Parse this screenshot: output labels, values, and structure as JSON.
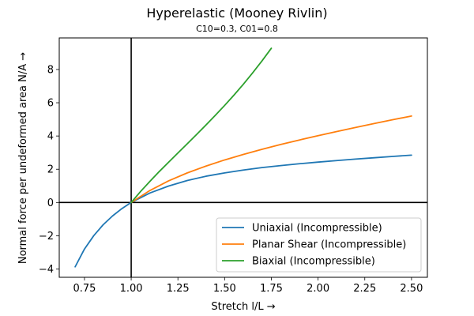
{
  "chart_data": {
    "type": "line",
    "title": "Hyperelastic (Mooney Rivlin)",
    "subtitle": "C10=0.3, C01=0.8",
    "xlabel": "Stretch l/L  →",
    "ylabel": "Normal force per undeformed area N/A  →",
    "xlim": [
      0.615,
      2.585
    ],
    "ylim": [
      -4.5,
      9.9
    ],
    "xticks": [
      "0.75",
      "1.00",
      "1.25",
      "1.50",
      "1.75",
      "2.00",
      "2.25",
      "2.50"
    ],
    "yticks": [
      "−4",
      "−2",
      "0",
      "2",
      "4",
      "6",
      "8"
    ],
    "reference_lines": {
      "x": 1.0,
      "y": 0
    },
    "grid": false,
    "legend_position": "bottom-right",
    "series": [
      {
        "name": "Uniaxial (Incompressible)",
        "color": "#1f77b4",
        "x": [
          0.7,
          0.75,
          0.8,
          0.85,
          0.9,
          0.95,
          1.0,
          1.1,
          1.2,
          1.3,
          1.4,
          1.5,
          1.6,
          1.7,
          1.8,
          1.9,
          2.0,
          2.1,
          2.2,
          2.3,
          2.4,
          2.5
        ],
        "y": [
          -3.87,
          -2.8,
          -1.99,
          -1.34,
          -0.81,
          -0.37,
          0.0,
          0.57,
          0.99,
          1.32,
          1.58,
          1.78,
          1.95,
          2.1,
          2.22,
          2.33,
          2.43,
          2.52,
          2.61,
          2.69,
          2.77,
          2.85
        ]
      },
      {
        "name": "Planar Shear (Incompressible)",
        "color": "#ff7f0e",
        "x": [
          1.0,
          1.1,
          1.2,
          1.3,
          1.4,
          1.5,
          1.6,
          1.7,
          1.8,
          1.9,
          2.0,
          2.1,
          2.2,
          2.3,
          2.4,
          2.5
        ],
        "y": [
          0.0,
          0.72,
          1.3,
          1.78,
          2.19,
          2.56,
          2.89,
          3.2,
          3.49,
          3.76,
          4.02,
          4.27,
          4.51,
          4.75,
          4.98,
          5.2
        ]
      },
      {
        "name": "Biaxial (Incompressible)",
        "color": "#2ca02c",
        "x": [
          1.0,
          1.05,
          1.1,
          1.15,
          1.2,
          1.25,
          1.3,
          1.35,
          1.4,
          1.45,
          1.5,
          1.55,
          1.6,
          1.65,
          1.7,
          1.75
        ],
        "y": [
          0.0,
          0.66,
          1.27,
          1.86,
          2.42,
          2.98,
          3.53,
          4.09,
          4.66,
          5.24,
          5.84,
          6.46,
          7.11,
          7.8,
          8.52,
          9.28
        ]
      }
    ]
  }
}
